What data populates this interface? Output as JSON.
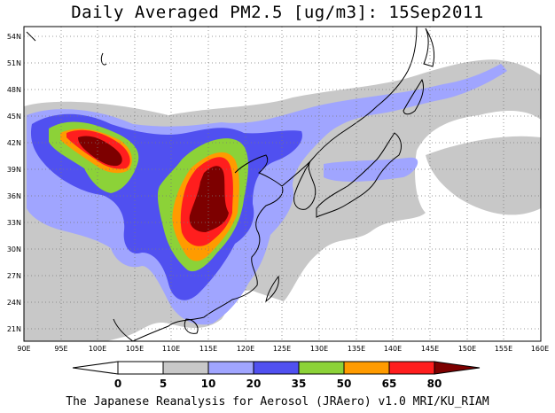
{
  "title": "Daily Averaged PM2.5 [ug/m3]: 15Sep2011",
  "credit": "The Japanese Reanalysis for Aerosol (JRAero) v1.0 MRI/KU_RIAM",
  "map": {
    "lon_range": [
      90,
      160
    ],
    "lat_range": [
      19.5,
      55
    ],
    "lon_ticks": [
      "90E",
      "95E",
      "100E",
      "105E",
      "110E",
      "115E",
      "120E",
      "125E",
      "130E",
      "135E",
      "140E",
      "145E",
      "150E",
      "155E",
      "160E"
    ],
    "lat_ticks": [
      "21N",
      "24N",
      "27N",
      "30N",
      "33N",
      "36N",
      "39N",
      "42N",
      "45N",
      "48N",
      "51N",
      "54N"
    ],
    "gridlines": true
  },
  "colorbar": {
    "labels": [
      "0",
      "5",
      "10",
      "20",
      "35",
      "50",
      "65",
      "80"
    ],
    "colors": [
      "#ffffff",
      "#c8c8c8",
      "#a0a5ff",
      "#5050f0",
      "#8cd238",
      "#ff9b00",
      "#ff1e1e",
      "#7d0000"
    ]
  }
}
